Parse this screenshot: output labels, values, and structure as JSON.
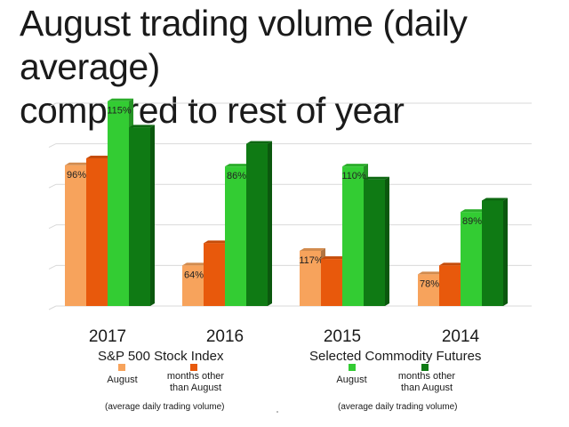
{
  "title_line1": "August trading volume (daily average)",
  "title_line2": "compared to rest of year",
  "colors": {
    "sp_august": "#f7a35c",
    "sp_other": "#e8590c",
    "cf_august": "#33cc33",
    "cf_other": "#0f7a14",
    "grid": "#d9d9d9"
  },
  "legend": {
    "sp_group": "S&P 500 Stock Index",
    "cf_group": "Selected Commodity Futures",
    "august": "August",
    "other_line1": "months other",
    "other_line2": "than August",
    "note": "(average daily trading volume)"
  },
  "chart_data": {
    "type": "bar",
    "categories": [
      "2017",
      "2016",
      "2015",
      "2014"
    ],
    "series": [
      {
        "name": "S&P 500 Stock Index — August",
        "values": [
          3.47,
          1.0,
          1.36,
          0.78
        ],
        "labels": [
          "96%",
          "64%",
          "117%",
          "78%"
        ]
      },
      {
        "name": "S&P 500 Stock Index — months other than August",
        "values": [
          3.64,
          1.55,
          1.16,
          1.0
        ]
      },
      {
        "name": "Selected Commodity Futures — August",
        "values": [
          5.05,
          3.44,
          3.44,
          2.32
        ],
        "labels": [
          "115%",
          "86%",
          "110%",
          "89%"
        ]
      },
      {
        "name": "Selected Commodity Futures — months other than August",
        "values": [
          4.4,
          4.0,
          3.12,
          2.6
        ]
      }
    ],
    "ylim": [
      0,
      5
    ],
    "grid": true,
    "legend_position": "bottom"
  }
}
